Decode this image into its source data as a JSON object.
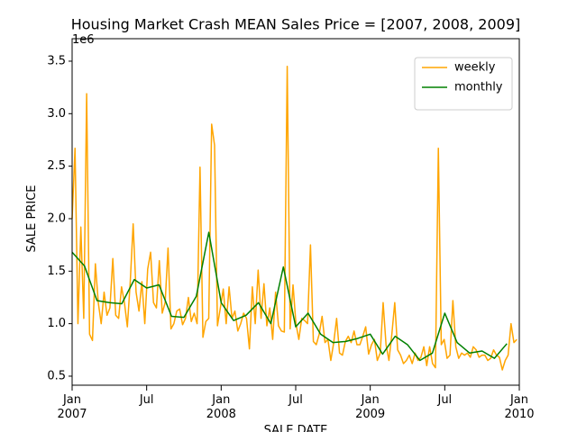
{
  "chart_data": {
    "type": "line",
    "title": "Housing Market Crash MEAN Sales Price = [2007, 2008, 2009]",
    "x_label": "SALE DATE",
    "y_label": "SALE PRICE",
    "y_offset_label": "1e6",
    "legend": "upper right",
    "xlim": [
      2007,
      2010
    ],
    "xticks": [
      {
        "value": 2007,
        "label": "Jan\n2007"
      },
      {
        "value": 2007.5,
        "label": "Jul"
      },
      {
        "value": 2008,
        "label": "Jan\n2008"
      },
      {
        "value": 2008.5,
        "label": "Jul"
      },
      {
        "value": 2009,
        "label": "Jan\n2009"
      },
      {
        "value": 2009.5,
        "label": "Jul"
      },
      {
        "value": 2010,
        "label": "Jan\n2010"
      }
    ],
    "ylim": [
      0.414,
      3.714
    ],
    "yticks": [
      0.5,
      {
        "value": 1,
        "label": "1.0"
      },
      1.5,
      {
        "value": 2,
        "label": "2.0"
      },
      2.5,
      {
        "value": 3,
        "label": "3.0"
      },
      3.5
    ],
    "series": [
      {
        "name": "weekly",
        "color": "#ffa500",
        "x": [
          2007,
          2007.0195,
          2007.039,
          2007.0585,
          2007.078,
          2007.0975,
          2007.117,
          2007.1365,
          2007.156,
          2007.1755,
          2007.195,
          2007.2145,
          2007.234,
          2007.2535,
          2007.273,
          2007.2925,
          2007.312,
          2007.3315,
          2007.351,
          2007.3705,
          2007.39,
          2007.4095,
          2007.429,
          2007.4485,
          2007.468,
          2007.4875,
          2007.507,
          2007.5265,
          2007.546,
          2007.5655,
          2007.585,
          2007.6045,
          2007.624,
          2007.6435,
          2007.663,
          2007.6825,
          2007.702,
          2007.7215,
          2007.741,
          2007.7605,
          2007.78,
          2007.7995,
          2007.819,
          2007.8385,
          2007.858,
          2007.8775,
          2007.897,
          2007.9165,
          2007.936,
          2007.9555,
          2007.975,
          2007.9945,
          2008.014,
          2008.0335,
          2008.053,
          2008.0725,
          2008.092,
          2008.1115,
          2008.131,
          2008.1505,
          2008.17,
          2008.1895,
          2008.209,
          2008.2285,
          2008.248,
          2008.2675,
          2008.287,
          2008.3065,
          2008.326,
          2008.3455,
          2008.365,
          2008.3845,
          2008.404,
          2008.4235,
          2008.443,
          2008.4625,
          2008.482,
          2008.5015,
          2008.521,
          2008.5405,
          2008.56,
          2008.5795,
          2008.599,
          2008.6185,
          2008.638,
          2008.6575,
          2008.677,
          2008.6965,
          2008.716,
          2008.7355,
          2008.755,
          2008.7745,
          2008.794,
          2008.8135,
          2008.833,
          2008.8525,
          2008.872,
          2008.8915,
          2008.911,
          2008.9305,
          2008.95,
          2008.9695,
          2008.989,
          2009.0085,
          2009.028,
          2009.0475,
          2009.067,
          2009.0865,
          2009.106,
          2009.1255,
          2009.145,
          2009.1645,
          2009.184,
          2009.2035,
          2009.223,
          2009.2425,
          2009.262,
          2009.2815,
          2009.301,
          2009.3205,
          2009.34,
          2009.3595,
          2009.379,
          2009.3985,
          2009.418,
          2009.4375,
          2009.457,
          2009.4765,
          2009.496,
          2009.5155,
          2009.535,
          2009.5545,
          2009.574,
          2009.5935,
          2009.613,
          2009.6325,
          2009.652,
          2009.6715,
          2009.691,
          2009.7105,
          2009.73,
          2009.7495,
          2009.769,
          2009.7885,
          2009.808,
          2009.8275,
          2009.847,
          2009.8665,
          2009.886,
          2009.9055,
          2009.925,
          2009.9445,
          2009.964,
          2009.9835
        ],
        "values": [
          2.0,
          2.67,
          1.0,
          1.92,
          1.05,
          3.19,
          0.9,
          0.84,
          1.57,
          1.2,
          1.0,
          1.3,
          1.08,
          1.15,
          1.62,
          1.08,
          1.05,
          1.35,
          1.2,
          0.97,
          1.4,
          1.95,
          1.3,
          1.12,
          1.4,
          1.0,
          1.52,
          1.68,
          1.2,
          1.15,
          1.6,
          1.1,
          1.2,
          1.72,
          0.95,
          1.0,
          1.12,
          1.14,
          0.99,
          1.05,
          1.25,
          1.02,
          1.1,
          1.0,
          2.49,
          0.87,
          1.02,
          1.05,
          2.9,
          2.7,
          0.98,
          1.15,
          1.33,
          1.0,
          1.35,
          1.05,
          1.12,
          0.93,
          1.0,
          1.1,
          1.05,
          0.76,
          1.35,
          1.0,
          1.51,
          1.05,
          1.38,
          0.98,
          1.15,
          0.85,
          1.3,
          0.98,
          0.93,
          0.92,
          3.45,
          0.95,
          1.37,
          1.0,
          0.85,
          1.05,
          1.03,
          1.0,
          1.75,
          0.83,
          0.8,
          0.9,
          1.07,
          0.82,
          0.85,
          0.65,
          0.82,
          1.05,
          0.72,
          0.7,
          0.83,
          0.88,
          0.82,
          0.93,
          0.8,
          0.8,
          0.88,
          0.97,
          0.71,
          0.8,
          0.85,
          0.65,
          0.72,
          1.2,
          0.8,
          0.65,
          0.9,
          1.2,
          0.75,
          0.7,
          0.62,
          0.65,
          0.7,
          0.62,
          0.72,
          0.65,
          0.68,
          0.78,
          0.6,
          0.78,
          0.62,
          0.58,
          2.67,
          0.8,
          0.85,
          0.67,
          0.7,
          1.22,
          0.78,
          0.67,
          0.72,
          0.7,
          0.72,
          0.68,
          0.78,
          0.75,
          0.68,
          0.7,
          0.7,
          0.65,
          0.67,
          0.75,
          0.7,
          0.68,
          0.56,
          0.65,
          0.7,
          1.0,
          0.82,
          0.85
        ]
      },
      {
        "name": "monthly",
        "color": "#008000",
        "x": [
          2007,
          2007.083,
          2007.167,
          2007.25,
          2007.333,
          2007.417,
          2007.5,
          2007.583,
          2007.667,
          2007.75,
          2007.833,
          2007.917,
          2008,
          2008.083,
          2008.167,
          2008.25,
          2008.333,
          2008.417,
          2008.5,
          2008.583,
          2008.667,
          2008.75,
          2008.833,
          2008.917,
          2009,
          2009.083,
          2009.167,
          2009.25,
          2009.333,
          2009.417,
          2009.5,
          2009.583,
          2009.667,
          2009.75,
          2009.833,
          2009.917
        ],
        "values": [
          1.68,
          1.55,
          1.22,
          1.2,
          1.19,
          1.42,
          1.34,
          1.37,
          1.07,
          1.06,
          1.26,
          1.87,
          1.2,
          1.03,
          1.08,
          1.2,
          1.0,
          1.54,
          0.97,
          1.1,
          0.9,
          0.82,
          0.83,
          0.86,
          0.9,
          0.71,
          0.88,
          0.8,
          0.65,
          0.72,
          1.1,
          0.82,
          0.72,
          0.74,
          0.67,
          0.81
        ]
      }
    ]
  }
}
